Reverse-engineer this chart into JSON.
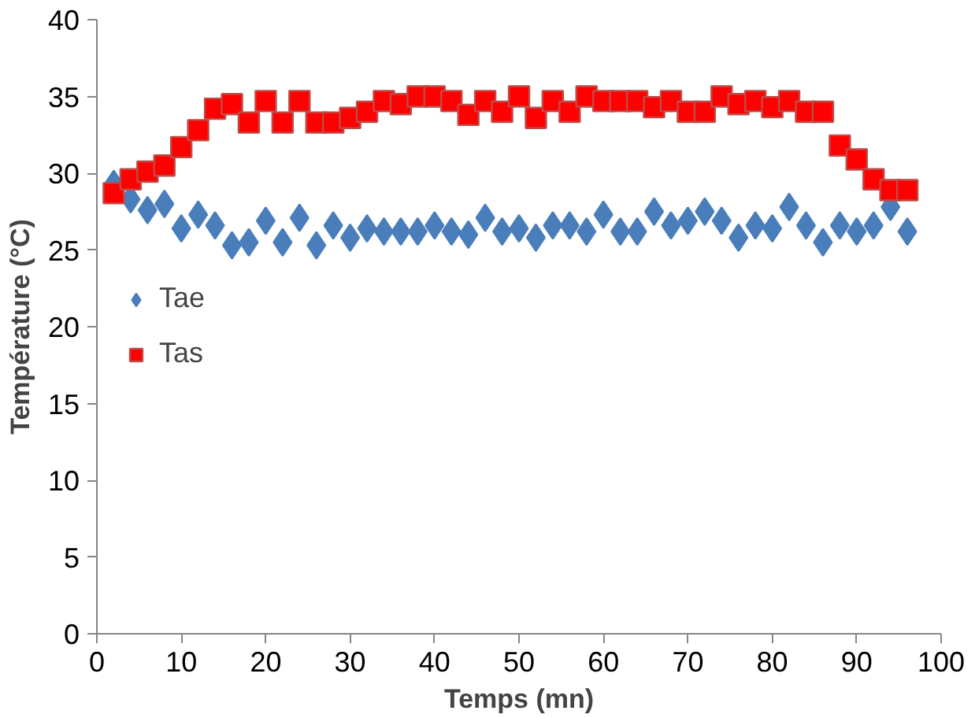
{
  "chart_data": {
    "type": "scatter",
    "xlabel": "Temps (mn)",
    "ylabel": "Température (°C)",
    "x": [
      2,
      4,
      6,
      8,
      10,
      12,
      14,
      16,
      18,
      20,
      22,
      24,
      26,
      28,
      30,
      32,
      34,
      36,
      38,
      40,
      42,
      44,
      46,
      48,
      50,
      52,
      54,
      56,
      58,
      60,
      62,
      64,
      66,
      68,
      70,
      72,
      74,
      76,
      78,
      80,
      82,
      84,
      86,
      88,
      90,
      92,
      94,
      96
    ],
    "series": [
      {
        "name": "Tae",
        "color": "#4a7ebb",
        "marker": "diamond",
        "values": [
          29.3,
          28.3,
          27.6,
          28.0,
          26.4,
          27.3,
          26.6,
          25.3,
          25.5,
          26.9,
          25.5,
          27.1,
          25.3,
          26.6,
          25.8,
          26.4,
          26.2,
          26.2,
          26.2,
          26.6,
          26.2,
          26.0,
          27.1,
          26.2,
          26.4,
          25.8,
          26.6,
          26.6,
          26.2,
          27.3,
          26.2,
          26.2,
          27.5,
          26.6,
          26.9,
          27.5,
          26.9,
          25.8,
          26.6,
          26.4,
          27.8,
          26.6,
          25.5,
          26.6,
          26.2,
          26.6,
          27.8,
          26.2
        ]
      },
      {
        "name": "Tas",
        "color": "#ff0000",
        "marker": "square",
        "values": [
          28.7,
          29.6,
          30.1,
          30.5,
          31.7,
          32.8,
          34.2,
          34.5,
          33.3,
          34.7,
          33.3,
          34.7,
          33.3,
          33.3,
          33.6,
          34.0,
          34.7,
          34.5,
          35.0,
          35.0,
          34.7,
          33.8,
          34.7,
          34.0,
          35.0,
          33.6,
          34.7,
          34.0,
          35.0,
          34.7,
          34.7,
          34.7,
          34.3,
          34.7,
          34.0,
          34.0,
          35.0,
          34.5,
          34.7,
          34.3,
          34.7,
          34.0,
          34.0,
          31.8,
          30.9,
          29.6,
          28.9,
          28.9
        ]
      }
    ],
    "xlim": [
      0,
      100
    ],
    "xticks": [
      0,
      10,
      20,
      30,
      40,
      50,
      60,
      70,
      80,
      90,
      100
    ],
    "ylim": [
      0,
      40
    ],
    "yticks": [
      0,
      5,
      10,
      15,
      20,
      25,
      30,
      35,
      40
    ],
    "grid": false,
    "legend": "left"
  }
}
